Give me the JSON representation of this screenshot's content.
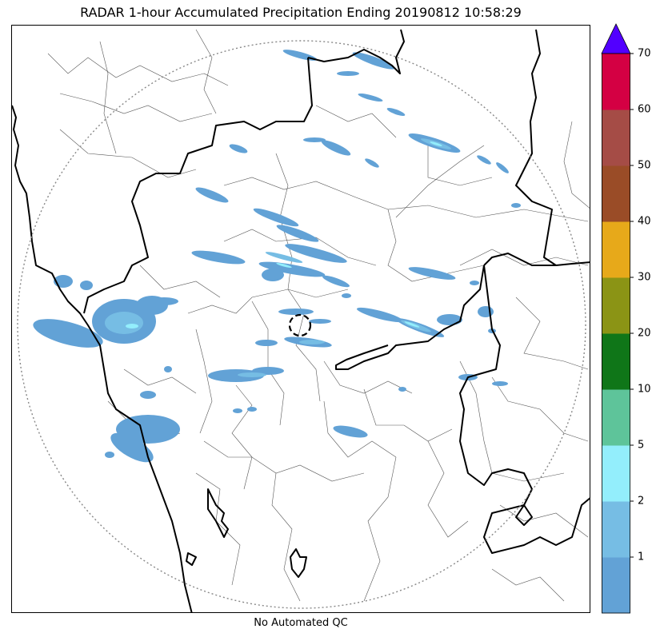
{
  "title": "RADAR 1-hour Accumulated Precipitation Ending 20190812 10:58:29",
  "footer": "No Automated QC",
  "colorbar": {
    "ticks": [
      "1",
      "2",
      "5",
      "10",
      "20",
      "30",
      "40",
      "50",
      "60",
      "70"
    ],
    "bins": [
      {
        "label": "0-1",
        "color": "#62a2d6"
      },
      {
        "label": "1-2",
        "color": "#76bde4"
      },
      {
        "label": "2-5",
        "color": "#93eefc"
      },
      {
        "label": "5-10",
        "color": "#5ec49a"
      },
      {
        "label": "10-20",
        "color": "#0f7618"
      },
      {
        "label": "20-30",
        "color": "#8b9415"
      },
      {
        "label": "30-40",
        "color": "#e7a91a"
      },
      {
        "label": "40-50",
        "color": "#9a4c27"
      },
      {
        "label": "50-60",
        "color": "#a54c46"
      },
      {
        "label": "60-70",
        "color": "#d40043"
      }
    ],
    "extend_color": "#5200ff"
  },
  "map": {
    "boundary_color": "#000000",
    "district_color": "#555555",
    "range_ring_color": "#888888"
  }
}
